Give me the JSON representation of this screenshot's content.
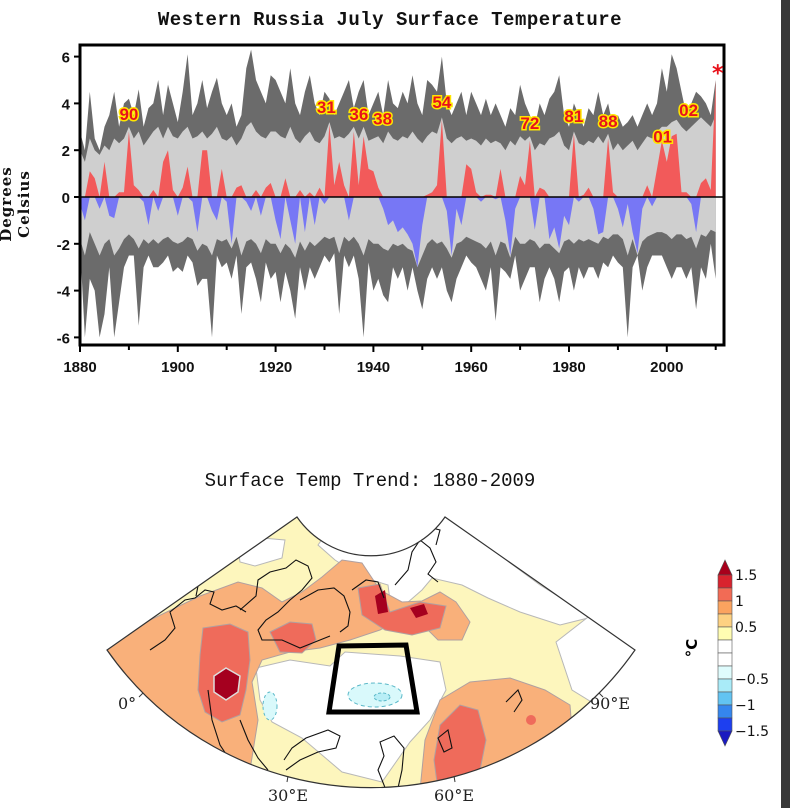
{
  "chart_data": [
    {
      "type": "area",
      "title": "Western Russia July Surface Temperature",
      "ylabel": "Degrees Celsius",
      "xlabel": "",
      "xlim": [
        1880,
        2010
      ],
      "ylim": [
        -6,
        6
      ],
      "xticks": [
        1880,
        1900,
        1920,
        1940,
        1960,
        1980,
        2000
      ],
      "yticks": [
        -6,
        -4,
        -2,
        0,
        2,
        4,
        6
      ],
      "grid": false,
      "colors": {
        "positive": "#f25a5a",
        "negative": "#7777f5",
        "light_envelope": "#cfcfcf",
        "dark_envelope": "#6b6b6b",
        "label_text": "#e8121b",
        "label_outline": "#ffe600",
        "marker": "#e8121b"
      },
      "years_start": 1880,
      "anomaly": [
        -0.3,
        -1.0,
        1.1,
        0.8,
        -0.5,
        1.5,
        -0.8,
        -0.9,
        0.2,
        0.2,
        2.8,
        0.5,
        0.3,
        -0.2,
        -1.2,
        0.3,
        -0.6,
        1.5,
        2.0,
        0.3,
        -0.8,
        0.4,
        1.3,
        -0.2,
        -1.5,
        2.0,
        2.0,
        -0.6,
        -1.0,
        1.2,
        -0.2,
        -2.0,
        0.4,
        0.5,
        -0.2,
        -0.6,
        0.3,
        -0.8,
        0.4,
        0.6,
        -1.0,
        -1.8,
        0.8,
        -1.0,
        -2.0,
        0.3,
        -1.5,
        0.2,
        -1.2,
        0.4,
        -0.3,
        3.1,
        0.5,
        1.5,
        0.5,
        -1.0,
        2.8,
        0.5,
        2.6,
        1.2,
        1.1,
        0.4,
        -0.5,
        -1.2,
        -1.0,
        -1.5,
        -1.3,
        -1.6,
        -2.0,
        -3.0,
        -1.2,
        0.1,
        0.2,
        0.5,
        3.3,
        -0.6,
        -2.5,
        -0.5,
        -1.2,
        1.4,
        1.2,
        0.2,
        -0.2,
        0.1,
        0.1,
        -0.1,
        1.2,
        -1.0,
        -2.5,
        -0.5,
        0.9,
        0.5,
        2.4,
        -1.4,
        0.4,
        0.3,
        -1.8,
        -1.3,
        -2.2,
        -0.8,
        -1.2,
        2.7,
        -0.2,
        0.1,
        0.4,
        -0.5,
        -1.6,
        -1.5,
        2.5,
        0.2,
        -0.5,
        -1.3,
        -0.3,
        -1.5,
        -2.4,
        -0.5,
        0.5,
        -0.4,
        1.2,
        2.4,
        1.5,
        2.6,
        2.7,
        0.2,
        0.2,
        -0.3,
        -1.5,
        0.6,
        0.8,
        0.3,
        5.0
      ],
      "light_upper": [
        2.0,
        1.5,
        2.5,
        2.0,
        1.8,
        2.2,
        2.0,
        2.5,
        2.3,
        2.5,
        3.0,
        2.5,
        2.8,
        2.2,
        2.5,
        2.8,
        3.0,
        2.5,
        3.0,
        2.6,
        2.5,
        2.8,
        3.0,
        2.5,
        2.6,
        2.8,
        2.5,
        2.7,
        3.0,
        2.5,
        2.4,
        2.6,
        2.2,
        2.5,
        3.0,
        3.2,
        2.8,
        2.6,
        2.5,
        2.8,
        2.8,
        2.6,
        2.5,
        3.0,
        2.5,
        2.3,
        2.6,
        2.8,
        2.4,
        2.3,
        2.6,
        3.2,
        2.5,
        2.6,
        2.5,
        2.7,
        3.0,
        2.5,
        3.0,
        2.4,
        2.5,
        2.6,
        2.3,
        2.8,
        2.5,
        2.4,
        2.6,
        2.5,
        2.8,
        2.5,
        2.3,
        2.6,
        2.8,
        2.7,
        3.4,
        2.5,
        2.3,
        2.5,
        2.6,
        2.4,
        2.5,
        2.4,
        2.2,
        2.5,
        2.3,
        2.4,
        2.3,
        2.0,
        2.4,
        2.2,
        2.6,
        2.4,
        2.6,
        2.0,
        2.3,
        2.2,
        2.5,
        2.6,
        2.8,
        2.2,
        2.0,
        2.8,
        2.3,
        2.2,
        2.4,
        2.3,
        2.6,
        2.3,
        2.7,
        2.0,
        2.3,
        2.0,
        2.2,
        2.4,
        2.0,
        2.3,
        2.6,
        2.5,
        2.8,
        3.0,
        3.0,
        3.2,
        3.3,
        3.0,
        2.8,
        3.0,
        3.2,
        3.4,
        3.2,
        3.0,
        3.5
      ],
      "light_lower": [
        -1.8,
        -2.5,
        -1.5,
        -2.0,
        -2.5,
        -2.0,
        -1.8,
        -2.5,
        -2.2,
        -1.8,
        -1.6,
        -1.8,
        -2.2,
        -1.8,
        -2.0,
        -1.8,
        -2.0,
        -1.8,
        -1.7,
        -1.9,
        -2.0,
        -1.9,
        -1.7,
        -1.8,
        -2.3,
        -2.0,
        -2.1,
        -2.5,
        -1.8,
        -1.9,
        -1.8,
        -2.2,
        -1.7,
        -2.5,
        -1.9,
        -1.8,
        -2.0,
        -2.4,
        -1.8,
        -2.0,
        -2.0,
        -2.4,
        -2.0,
        -2.2,
        -2.6,
        -1.9,
        -2.3,
        -1.9,
        -2.1,
        -1.9,
        -1.7,
        -1.8,
        -1.7,
        -2.4,
        -1.7,
        -1.9,
        -1.7,
        -2.0,
        -2.5,
        -1.8,
        -2.0,
        -2.0,
        -2.2,
        -2.3,
        -2.0,
        -2.1,
        -2.0,
        -2.2,
        -2.3,
        -3.0,
        -2.5,
        -2.0,
        -1.8,
        -2.0,
        -1.9,
        -2.2,
        -2.6,
        -2.0,
        -1.9,
        -1.7,
        -1.8,
        -1.9,
        -2.0,
        -2.2,
        -1.9,
        -2.5,
        -1.9,
        -2.0,
        -2.6,
        -1.7,
        -2.0,
        -2.0,
        -1.8,
        -1.9,
        -2.2,
        -2.0,
        -2.0,
        -2.2,
        -2.4,
        -1.9,
        -1.8,
        -2.0,
        -1.8,
        -1.9,
        -1.8,
        -1.9,
        -2.0,
        -1.7,
        -1.8,
        -1.6,
        -1.6,
        -1.8,
        -2.5,
        -1.8,
        -2.5,
        -1.9,
        -1.7,
        -1.6,
        -1.5,
        -1.5,
        -1.6,
        -1.8,
        -1.6,
        -1.6,
        -1.8,
        -1.7,
        -2.2,
        -1.6,
        -1.7,
        -1.4,
        -1.5
      ],
      "dark_upper": [
        2.8,
        2.0,
        4.5,
        2.5,
        2.0,
        3.0,
        3.5,
        4.5,
        3.0,
        4.0,
        4.2,
        3.5,
        4.6,
        3.0,
        3.8,
        4.0,
        5.0,
        3.5,
        4.8,
        4.0,
        3.2,
        4.5,
        6.1,
        3.5,
        4.0,
        5.0,
        3.8,
        4.5,
        5.1,
        4.0,
        3.5,
        4.0,
        3.0,
        3.5,
        5.5,
        6.3,
        5.0,
        4.5,
        4.0,
        5.2,
        5.0,
        4.5,
        4.0,
        5.5,
        4.0,
        3.5,
        4.5,
        5.2,
        4.0,
        3.5,
        4.5,
        4.2,
        3.5,
        4.0,
        4.5,
        5.0,
        3.8,
        4.5,
        5.0,
        3.5,
        4.0,
        4.5,
        3.5,
        5.0,
        4.0,
        3.8,
        4.5,
        4.0,
        5.2,
        4.0,
        3.5,
        5.0,
        4.8,
        4.5,
        6.0,
        4.0,
        3.5,
        4.0,
        4.5,
        3.5,
        4.5,
        4.0,
        3.5,
        4.2,
        3.5,
        4.0,
        3.5,
        3.0,
        3.8,
        3.5,
        4.8,
        4.0,
        3.5,
        3.0,
        4.0,
        3.5,
        4.2,
        4.5,
        5.2,
        3.5,
        3.0,
        4.0,
        3.5,
        3.0,
        3.8,
        3.5,
        4.5,
        3.5,
        4.0,
        3.0,
        3.5,
        3.0,
        3.2,
        3.5,
        3.0,
        3.5,
        4.0,
        3.5,
        4.0,
        5.5,
        4.5,
        6.1,
        5.5,
        4.5,
        3.5,
        4.0,
        4.5,
        4.3,
        4.0,
        3.5,
        5.0
      ],
      "dark_lower": [
        -2.0,
        -6.0,
        -3.5,
        -4.0,
        -6.0,
        -5.0,
        -3.0,
        -6.0,
        -4.5,
        -3.0,
        -2.5,
        -2.5,
        -5.5,
        -3.0,
        -2.5,
        -3.0,
        -3.0,
        -2.8,
        -2.5,
        -3.2,
        -3.0,
        -3.2,
        -2.5,
        -2.8,
        -3.8,
        -3.5,
        -3.5,
        -6.0,
        -2.5,
        -3.0,
        -2.8,
        -3.5,
        -2.5,
        -5.0,
        -3.0,
        -2.8,
        -3.5,
        -4.5,
        -2.8,
        -3.5,
        -3.2,
        -4.5,
        -3.2,
        -4.0,
        -5.2,
        -3.0,
        -4.0,
        -3.0,
        -3.5,
        -3.0,
        -2.5,
        -2.8,
        -2.4,
        -5.0,
        -2.5,
        -3.0,
        -2.5,
        -3.5,
        -6.0,
        -2.8,
        -4.0,
        -3.5,
        -4.2,
        -4.5,
        -3.0,
        -3.5,
        -3.0,
        -4.0,
        -3.0,
        -4.0,
        -4.8,
        -3.5,
        -3.0,
        -3.5,
        -3.0,
        -4.0,
        -4.5,
        -3.5,
        -3.0,
        -2.5,
        -2.8,
        -3.0,
        -3.5,
        -4.0,
        -3.0,
        -5.3,
        -3.0,
        -3.2,
        -3.5,
        -2.5,
        -4.0,
        -3.5,
        -3.0,
        -3.0,
        -4.5,
        -3.5,
        -3.0,
        -3.5,
        -4.5,
        -3.2,
        -3.0,
        -4.0,
        -3.0,
        -3.5,
        -3.0,
        -3.0,
        -3.5,
        -2.8,
        -3.0,
        -2.5,
        -2.8,
        -3.0,
        -6.0,
        -3.0,
        -2.5,
        -4.0,
        -3.0,
        -2.5,
        -2.5,
        -2.5,
        -3.0,
        -3.5,
        -3.0,
        -3.0,
        -3.5,
        -3.0,
        -4.8,
        -3.0,
        -3.5,
        -2.0,
        -3.5
      ],
      "annotations": [
        {
          "text": "90",
          "year": 1890
        },
        {
          "text": "31",
          "year": 1931
        },
        {
          "text": "36",
          "year": 1936
        },
        {
          "text": "38",
          "year": 1938
        },
        {
          "text": "54",
          "year": 1954
        },
        {
          "text": "72",
          "year": 1972
        },
        {
          "text": "81",
          "year": 1981
        },
        {
          "text": "88",
          "year": 1988
        },
        {
          "text": "01",
          "year": 2001
        },
        {
          "text": "02",
          "year": 2002
        }
      ],
      "marker": {
        "text": "*",
        "year": 2010
      }
    },
    {
      "type": "heatmap",
      "title": "Surface Temp Trend: 1880-2009",
      "projection": "conic",
      "lon_labels": [
        "0°",
        "30°E",
        "60°E",
        "90°E"
      ],
      "colorbar": {
        "unit": "°C",
        "tick_labels": [
          "1.5",
          "1",
          "0.5",
          "−0.5",
          "−1",
          "−1.5"
        ],
        "levels": [
          1.5,
          1.25,
          1.0,
          0.75,
          0.5,
          0.25,
          0,
          -0.25,
          -0.5,
          -0.75,
          -1.0,
          -1.25,
          -1.5
        ],
        "colors": [
          "#a8001c",
          "#d8232e",
          "#f26b55",
          "#fba35f",
          "#fdd182",
          "#fffdb2",
          "#ffffff",
          "#ffffff",
          "#dffcfd",
          "#a9ebf8",
          "#62c4f2",
          "#3586ee",
          "#1d3ff0",
          "#1a1ac0"
        ],
        "extend": "both"
      },
      "highlighted_region": "Western Russia box"
    }
  ]
}
